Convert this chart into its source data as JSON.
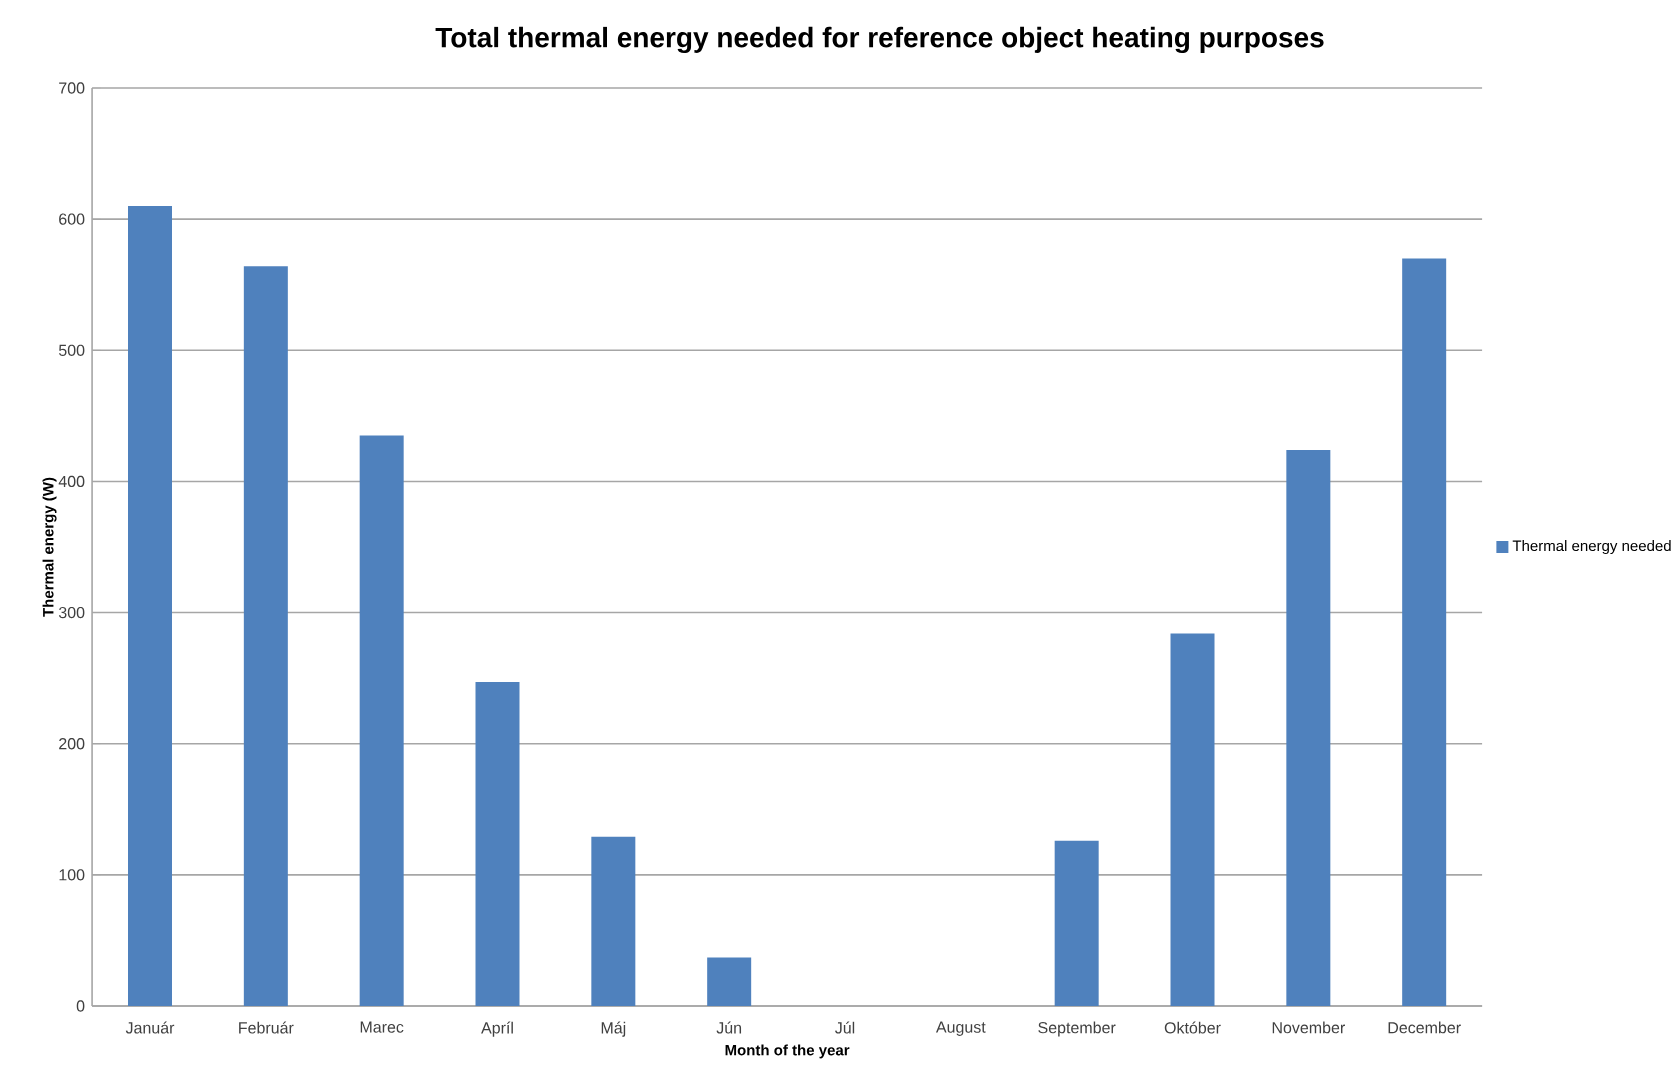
{
  "chart_data": {
    "type": "bar",
    "title": "Total thermal energy needed for reference object heating purposes",
    "xlabel": "Month of the year",
    "ylabel": "Thermal energy (W)",
    "categories": [
      "Január",
      "Február",
      "Marec",
      "Apríl",
      "Máj",
      "Jún",
      "Júl",
      "August",
      "September",
      "Október",
      "November",
      "December"
    ],
    "series": [
      {
        "name": "Thermal energy needed",
        "color": "#4f81bd",
        "values": [
          610,
          564,
          435,
          247,
          129,
          37,
          0,
          0,
          126,
          284,
          424,
          570
        ]
      }
    ],
    "ylim": [
      0,
      700
    ],
    "yticks": [
      0,
      100,
      200,
      300,
      400,
      500,
      600,
      700
    ],
    "grid": "y",
    "legend": "right"
  }
}
